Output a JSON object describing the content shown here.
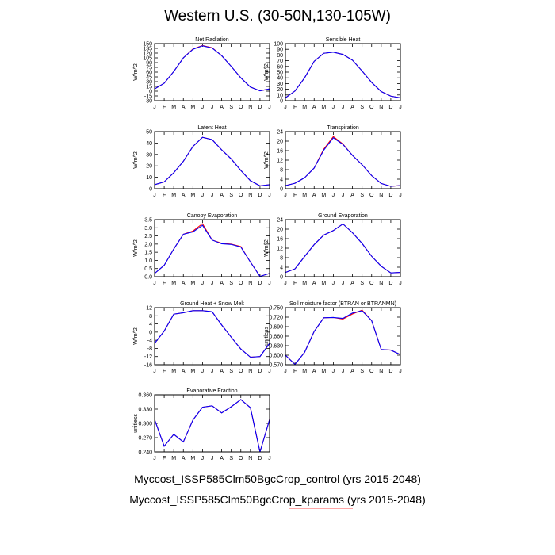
{
  "figure": {
    "title": "Western U.S. (30-50N,130-105W)",
    "legend": [
      {
        "label": "Myccost_ISSP585Clm50BgcCrop_control (yrs 2015-2048)",
        "color": "#0000ff"
      },
      {
        "label": "Myccost_ISSP585Clm50BgcCrop_kparams (yrs 2015-2048)",
        "color": "#ff0000"
      }
    ]
  },
  "chart_data": [
    {
      "type": "line",
      "title": "Net Radiation",
      "xlabel": "",
      "ylabel": "W/m^2",
      "categories": [
        "J",
        "F",
        "M",
        "A",
        "M",
        "J",
        "J",
        "A",
        "S",
        "O",
        "N",
        "D",
        "J"
      ],
      "ylim": [
        -30,
        150
      ],
      "yticks": [
        "-30",
        "-15",
        "0",
        "15",
        "30",
        "45",
        "60",
        "75",
        "90",
        "105",
        "120",
        "135",
        "150"
      ],
      "series": [
        {
          "color": "#0000ff",
          "values": [
            7,
            25,
            62,
            105,
            132,
            143,
            136,
            112,
            78,
            42,
            13,
            1,
            7
          ]
        },
        {
          "color": "#ff0000",
          "values": [
            7,
            25,
            62,
            105,
            133,
            144,
            137,
            112,
            78,
            42,
            13,
            1,
            7
          ]
        }
      ]
    },
    {
      "type": "line",
      "title": "Sensible Heat",
      "xlabel": "",
      "ylabel": "W/m^2",
      "categories": [
        "J",
        "F",
        "M",
        "A",
        "M",
        "J",
        "J",
        "A",
        "S",
        "O",
        "N",
        "D",
        "J"
      ],
      "ylim": [
        0,
        100
      ],
      "yticks": [
        "0",
        "10",
        "20",
        "30",
        "40",
        "50",
        "60",
        "70",
        "80",
        "90",
        "100"
      ],
      "series": [
        {
          "color": "#0000ff",
          "values": [
            5,
            17,
            40,
            69,
            83,
            85,
            81,
            71,
            52,
            32,
            16,
            8,
            5
          ]
        },
        {
          "color": "#ff0000",
          "values": [
            5,
            17,
            40,
            69,
            83,
            85,
            81,
            71,
            52,
            32,
            16,
            8,
            5
          ]
        }
      ]
    },
    {
      "type": "line",
      "title": "Latent Heat",
      "xlabel": "",
      "ylabel": "W/m^2",
      "categories": [
        "J",
        "F",
        "M",
        "A",
        "M",
        "J",
        "J",
        "A",
        "S",
        "O",
        "N",
        "D",
        "J"
      ],
      "ylim": [
        0,
        50
      ],
      "yticks": [
        "0",
        "10",
        "20",
        "30",
        "40",
        "50"
      ],
      "series": [
        {
          "color": "#0000ff",
          "values": [
            3.5,
            6,
            14,
            24,
            37,
            45,
            43,
            34,
            26,
            16,
            7,
            2.5,
            3.5
          ]
        },
        {
          "color": "#ff0000",
          "values": [
            3.5,
            6,
            14,
            24,
            37,
            45,
            43,
            34,
            26,
            16,
            7,
            2.5,
            3.5
          ]
        }
      ]
    },
    {
      "type": "line",
      "title": "Transpiration",
      "xlabel": "",
      "ylabel": "W/m^2",
      "categories": [
        "J",
        "F",
        "M",
        "A",
        "M",
        "J",
        "J",
        "A",
        "S",
        "O",
        "N",
        "D",
        "J"
      ],
      "ylim": [
        0,
        24
      ],
      "yticks": [
        "0",
        "4",
        "8",
        "12",
        "16",
        "20",
        "24"
      ],
      "series": [
        {
          "color": "#0000ff",
          "values": [
            1.3,
            2.3,
            4.6,
            8.7,
            16.2,
            21.4,
            18.6,
            14,
            10.1,
            5.5,
            2.2,
            1,
            1.3
          ]
        },
        {
          "color": "#ff0000",
          "values": [
            1.3,
            2.3,
            4.6,
            8.7,
            16.6,
            21.9,
            18.8,
            14,
            10.1,
            5.5,
            2.2,
            1,
            1.3
          ]
        }
      ]
    },
    {
      "type": "line",
      "title": "Canopy Evaporation",
      "xlabel": "",
      "ylabel": "W/m^2",
      "categories": [
        "J",
        "F",
        "M",
        "A",
        "M",
        "J",
        "J",
        "A",
        "S",
        "O",
        "N",
        "D",
        "J"
      ],
      "ylim": [
        0,
        3.5
      ],
      "yticks": [
        "0.0",
        "0.5",
        "1.0",
        "1.5",
        "2.0",
        "2.5",
        "3.0",
        "3.5"
      ],
      "series": [
        {
          "color": "#0000ff",
          "values": [
            0.2,
            0.7,
            1.7,
            2.6,
            2.75,
            3.15,
            2.25,
            2.02,
            1.98,
            1.82,
            0.9,
            0.02,
            0.2
          ]
        },
        {
          "color": "#ff0000",
          "values": [
            0.2,
            0.7,
            1.7,
            2.6,
            2.8,
            3.25,
            2.25,
            2.05,
            2.0,
            1.85,
            0.9,
            0.02,
            0.2
          ]
        }
      ]
    },
    {
      "type": "line",
      "title": "Ground Evaporation",
      "xlabel": "",
      "ylabel": "W/m^2",
      "categories": [
        "J",
        "F",
        "M",
        "A",
        "M",
        "J",
        "J",
        "A",
        "S",
        "O",
        "N",
        "D",
        "J"
      ],
      "ylim": [
        0,
        24
      ],
      "yticks": [
        "0",
        "4",
        "8",
        "12",
        "16",
        "20",
        "24"
      ],
      "series": [
        {
          "color": "#0000ff",
          "values": [
            1.8,
            3.3,
            8.5,
            13.5,
            17.5,
            19.4,
            22.2,
            18.5,
            14,
            8.6,
            4.4,
            1.6,
            1.8
          ]
        },
        {
          "color": "#ff0000",
          "values": [
            1.8,
            3.3,
            8.5,
            13.5,
            17.5,
            19.4,
            22.2,
            18.5,
            14,
            8.6,
            4.4,
            1.6,
            1.8
          ]
        }
      ]
    },
    {
      "type": "line",
      "title": "Ground Heat + Snow Melt",
      "xlabel": "",
      "ylabel": "W/m^2",
      "categories": [
        "J",
        "F",
        "M",
        "A",
        "M",
        "J",
        "J",
        "A",
        "S",
        "O",
        "N",
        "D",
        "J"
      ],
      "ylim": [
        -16,
        12
      ],
      "yticks": [
        "-16",
        "-12",
        "-8",
        "-4",
        "0",
        "4",
        "8",
        "12"
      ],
      "series": [
        {
          "color": "#0000ff",
          "values": [
            -5.5,
            0.5,
            8.8,
            9.5,
            10.5,
            10.5,
            10,
            3.5,
            -2.5,
            -8.3,
            -12.3,
            -12,
            -5.5
          ]
        },
        {
          "color": "#ff0000",
          "values": [
            -5.5,
            0.5,
            8.8,
            9.5,
            10.5,
            10.5,
            10,
            3.5,
            -2.5,
            -8.3,
            -12.3,
            -12,
            -5.5
          ]
        }
      ]
    },
    {
      "type": "line",
      "title": "Soil moisture factor (BTRAN or BTRANMN)",
      "xlabel": "",
      "ylabel": "unitless",
      "categories": [
        "J",
        "F",
        "M",
        "A",
        "M",
        "J",
        "J",
        "A",
        "S",
        "O",
        "N",
        "D",
        "J"
      ],
      "ylim": [
        0.57,
        0.75
      ],
      "yticks": [
        "0.570",
        "0.600",
        "0.630",
        "0.660",
        "0.690",
        "0.720",
        "0.750"
      ],
      "series": [
        {
          "color": "#0000ff",
          "values": [
            0.6,
            0.571,
            0.609,
            0.675,
            0.718,
            0.719,
            0.716,
            0.733,
            0.74,
            0.709,
            0.618,
            0.616,
            0.602
          ]
        },
        {
          "color": "#ff0000",
          "values": [
            0.6,
            0.571,
            0.609,
            0.675,
            0.718,
            0.719,
            0.714,
            0.73,
            0.742,
            0.709,
            0.618,
            0.616,
            0.602
          ]
        }
      ]
    },
    {
      "type": "line",
      "title": "Evaporative Fraction",
      "xlabel": "",
      "ylabel": "unitless",
      "categories": [
        "J",
        "F",
        "M",
        "A",
        "M",
        "J",
        "J",
        "A",
        "S",
        "O",
        "N",
        "D",
        "J"
      ],
      "ylim": [
        0.24,
        0.36
      ],
      "yticks": [
        "0.240",
        "0.270",
        "0.300",
        "0.330",
        "0.360"
      ],
      "series": [
        {
          "color": "#0000ff",
          "values": [
            0.308,
            0.252,
            0.277,
            0.261,
            0.307,
            0.334,
            0.337,
            0.322,
            0.335,
            0.35,
            0.333,
            0.24,
            0.308
          ]
        },
        {
          "color": "#ff0000",
          "values": [
            0.308,
            0.252,
            0.277,
            0.261,
            0.307,
            0.334,
            0.337,
            0.322,
            0.335,
            0.35,
            0.333,
            0.24,
            0.308
          ]
        }
      ]
    }
  ]
}
